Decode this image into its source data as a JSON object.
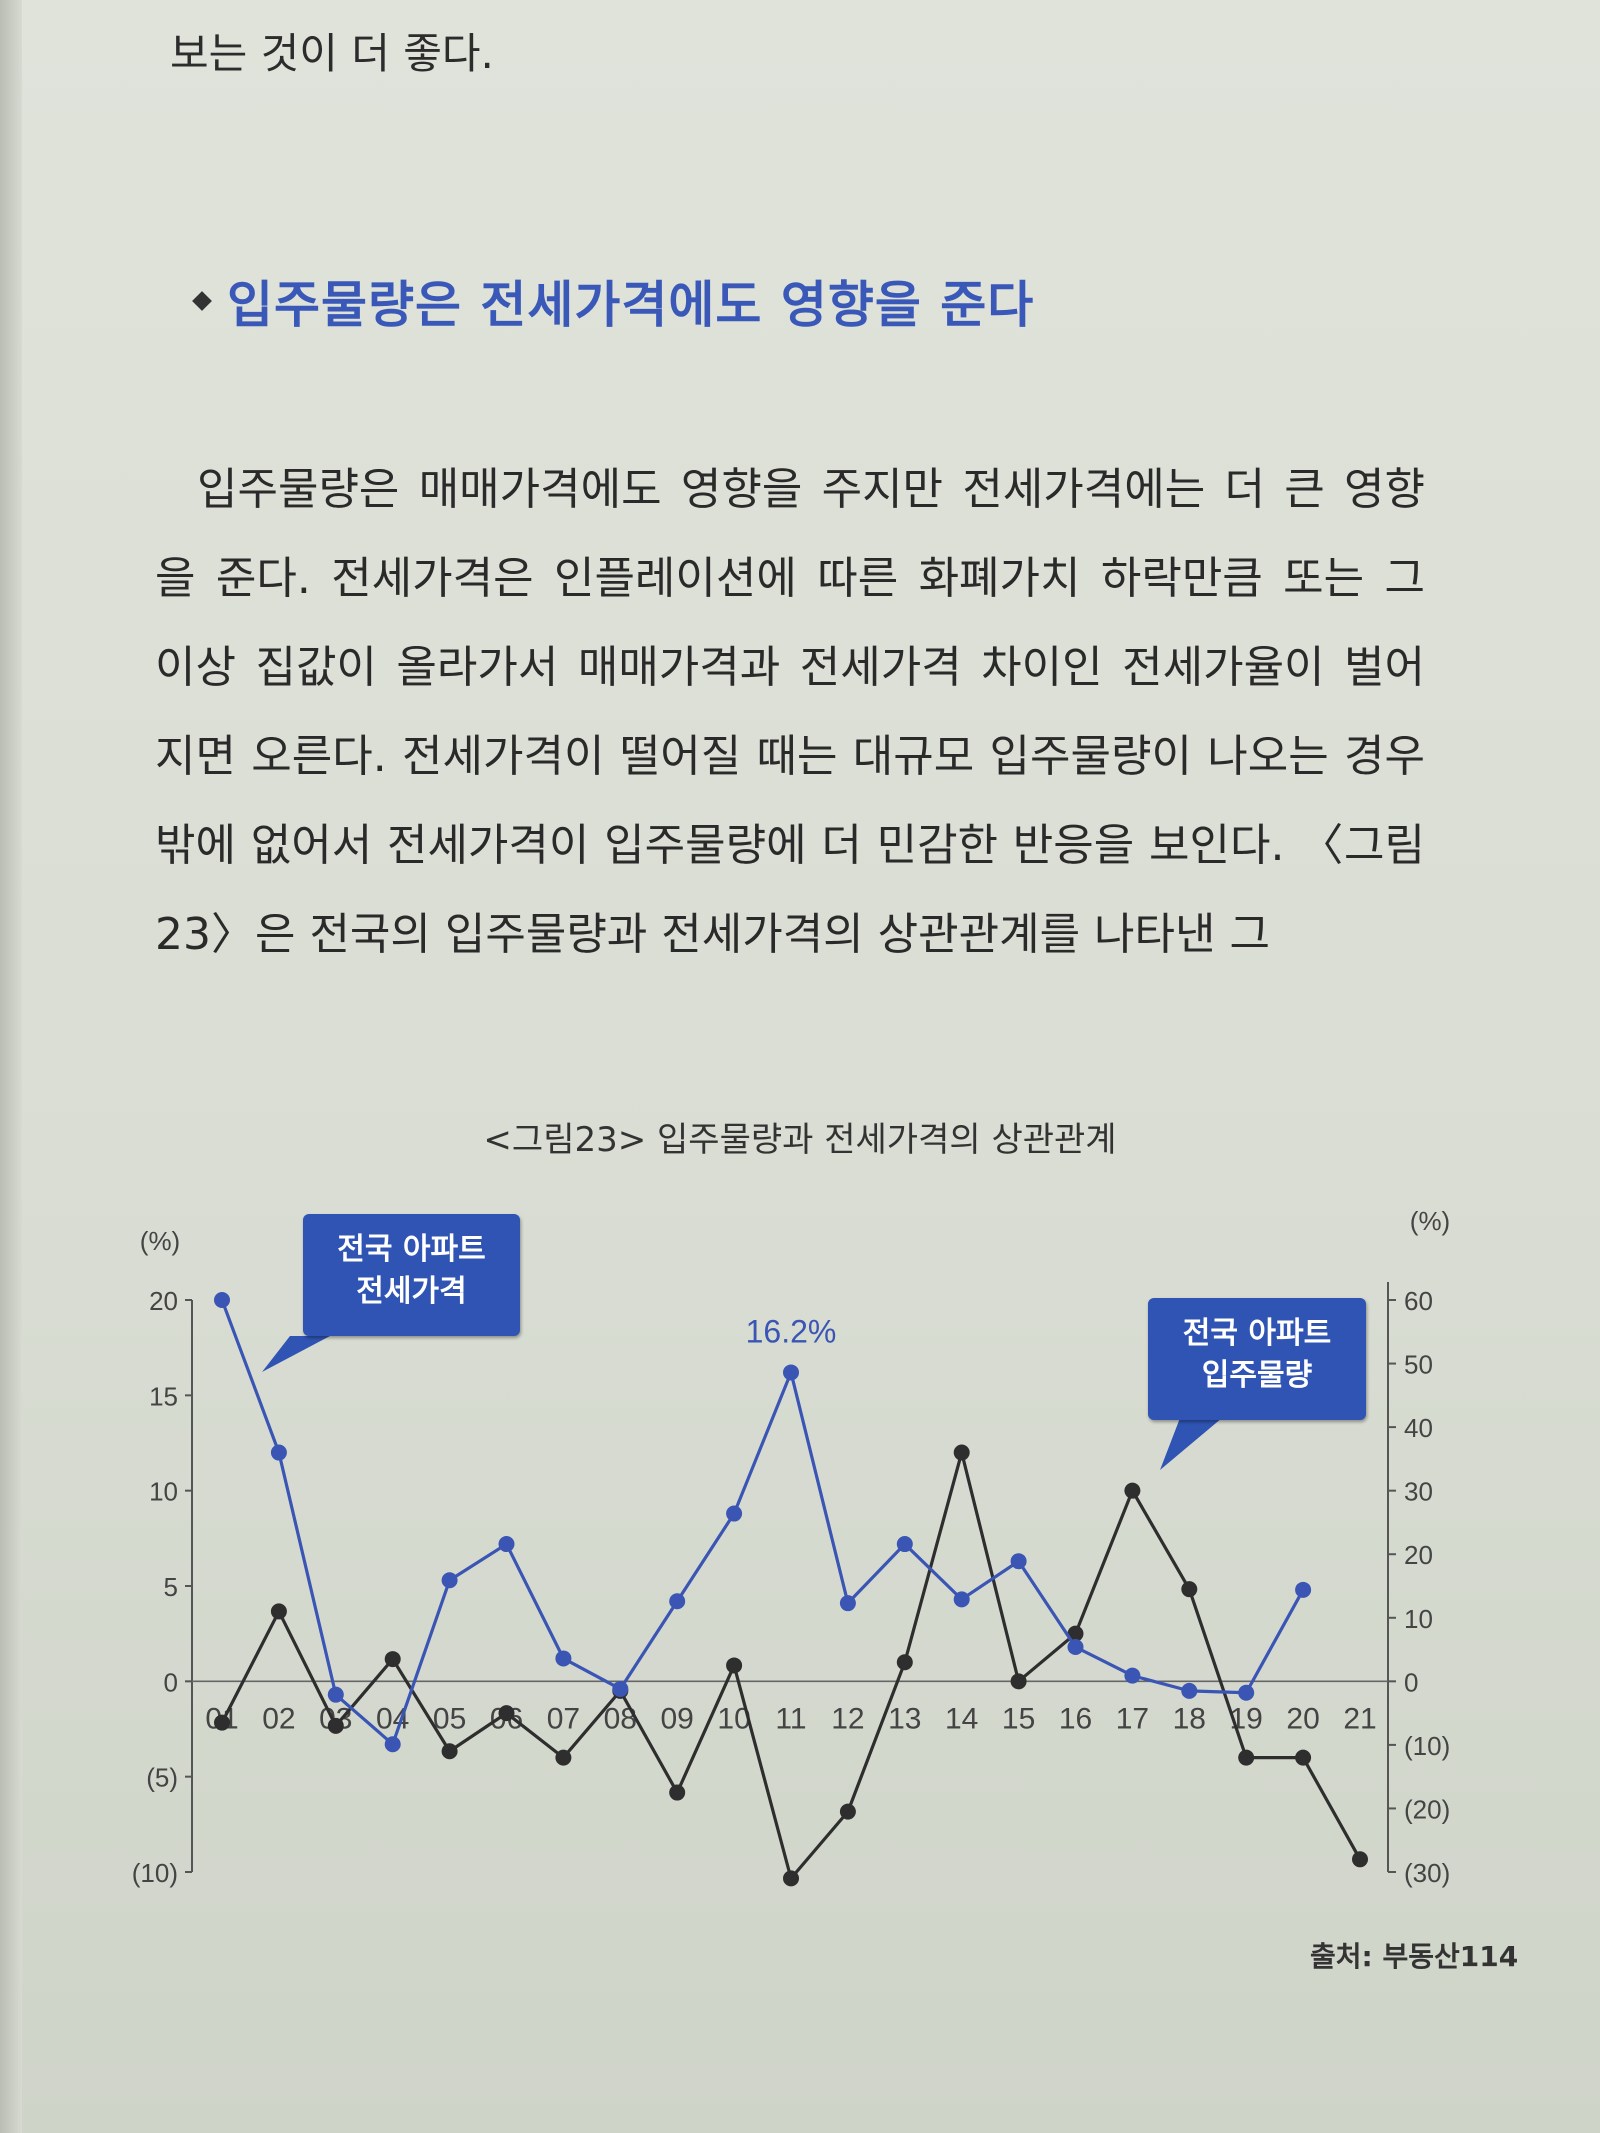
{
  "text": {
    "intro_line": "보는 것이 더 좋다.",
    "section_title": "입주물량은 전세가격에도 영향을 준다",
    "paragraph": "입주물량은 매매가격에도 영향을 주지만 전세가격에는 더 큰 영향을 준다. 전세가격은 인플레이션에 따른 화폐가치 하락만큼 또는 그 이상 집값이 올라가서 매매가격과 전세가격 차이인 전세가율이 벌어지면 오른다. 전세가격이 떨어질 때는 대규모 입주물량이 나오는 경우밖에 없어서 전세가격이 입주물량에 더 민감한 반응을 보인다. 〈그림23〉은 전국의 입주물량과 전세가격의 상관관계를 나타낸 그",
    "figure_caption": "<그림23> 입주물량과 전세가격의 상관관계",
    "source": "출처: 부동산114"
  },
  "chart_data": {
    "type": "line",
    "title": "<그림23> 입주물량과 전세가격의 상관관계",
    "x": [
      "01",
      "02",
      "03",
      "04",
      "05",
      "06",
      "07",
      "08",
      "09",
      "10",
      "11",
      "12",
      "13",
      "14",
      "15",
      "16",
      "17",
      "18",
      "19",
      "20",
      "21"
    ],
    "left_axis": {
      "unit_label": "(%)",
      "ylim": [
        -10,
        20
      ],
      "ticks": [
        20,
        15,
        10,
        5,
        0,
        -5,
        -10
      ],
      "tick_labels": [
        "20",
        "15",
        "10",
        "5",
        "0",
        "(5)",
        "(10)"
      ]
    },
    "right_axis": {
      "unit_label": "(%)",
      "ylim": [
        -30,
        60
      ],
      "ticks": [
        60,
        50,
        40,
        30,
        20,
        10,
        0,
        -10,
        -20,
        -30
      ],
      "tick_labels": [
        "60",
        "50",
        "40",
        "30",
        "20",
        "10",
        "0",
        "(10)",
        "(20)",
        "(30)"
      ]
    },
    "series": [
      {
        "name": "전국 아파트 전세가격",
        "axis": "left",
        "color": "#3a55b4",
        "values": [
          20.0,
          12.0,
          -0.7,
          -3.3,
          5.3,
          7.2,
          1.2,
          -0.4,
          4.2,
          8.8,
          16.2,
          4.1,
          7.2,
          4.3,
          6.3,
          1.8,
          0.3,
          -0.5,
          -0.6,
          4.8,
          null
        ]
      },
      {
        "name": "전국 아파트 입주물량",
        "axis": "right",
        "color": "#2e2e2e",
        "values": [
          -6.5,
          11.0,
          -7.0,
          3.5,
          -11.0,
          -5.0,
          -12.0,
          -1.5,
          -17.5,
          2.5,
          -31.0,
          -20.5,
          3.0,
          36.0,
          0.0,
          7.5,
          30.0,
          14.5,
          -12.0,
          -12.0,
          -28.0
        ]
      }
    ],
    "annotations": [
      {
        "text": "16.2%",
        "series": 0,
        "x": "11",
        "color": "#3a55b4"
      }
    ],
    "legend": "callouts"
  }
}
